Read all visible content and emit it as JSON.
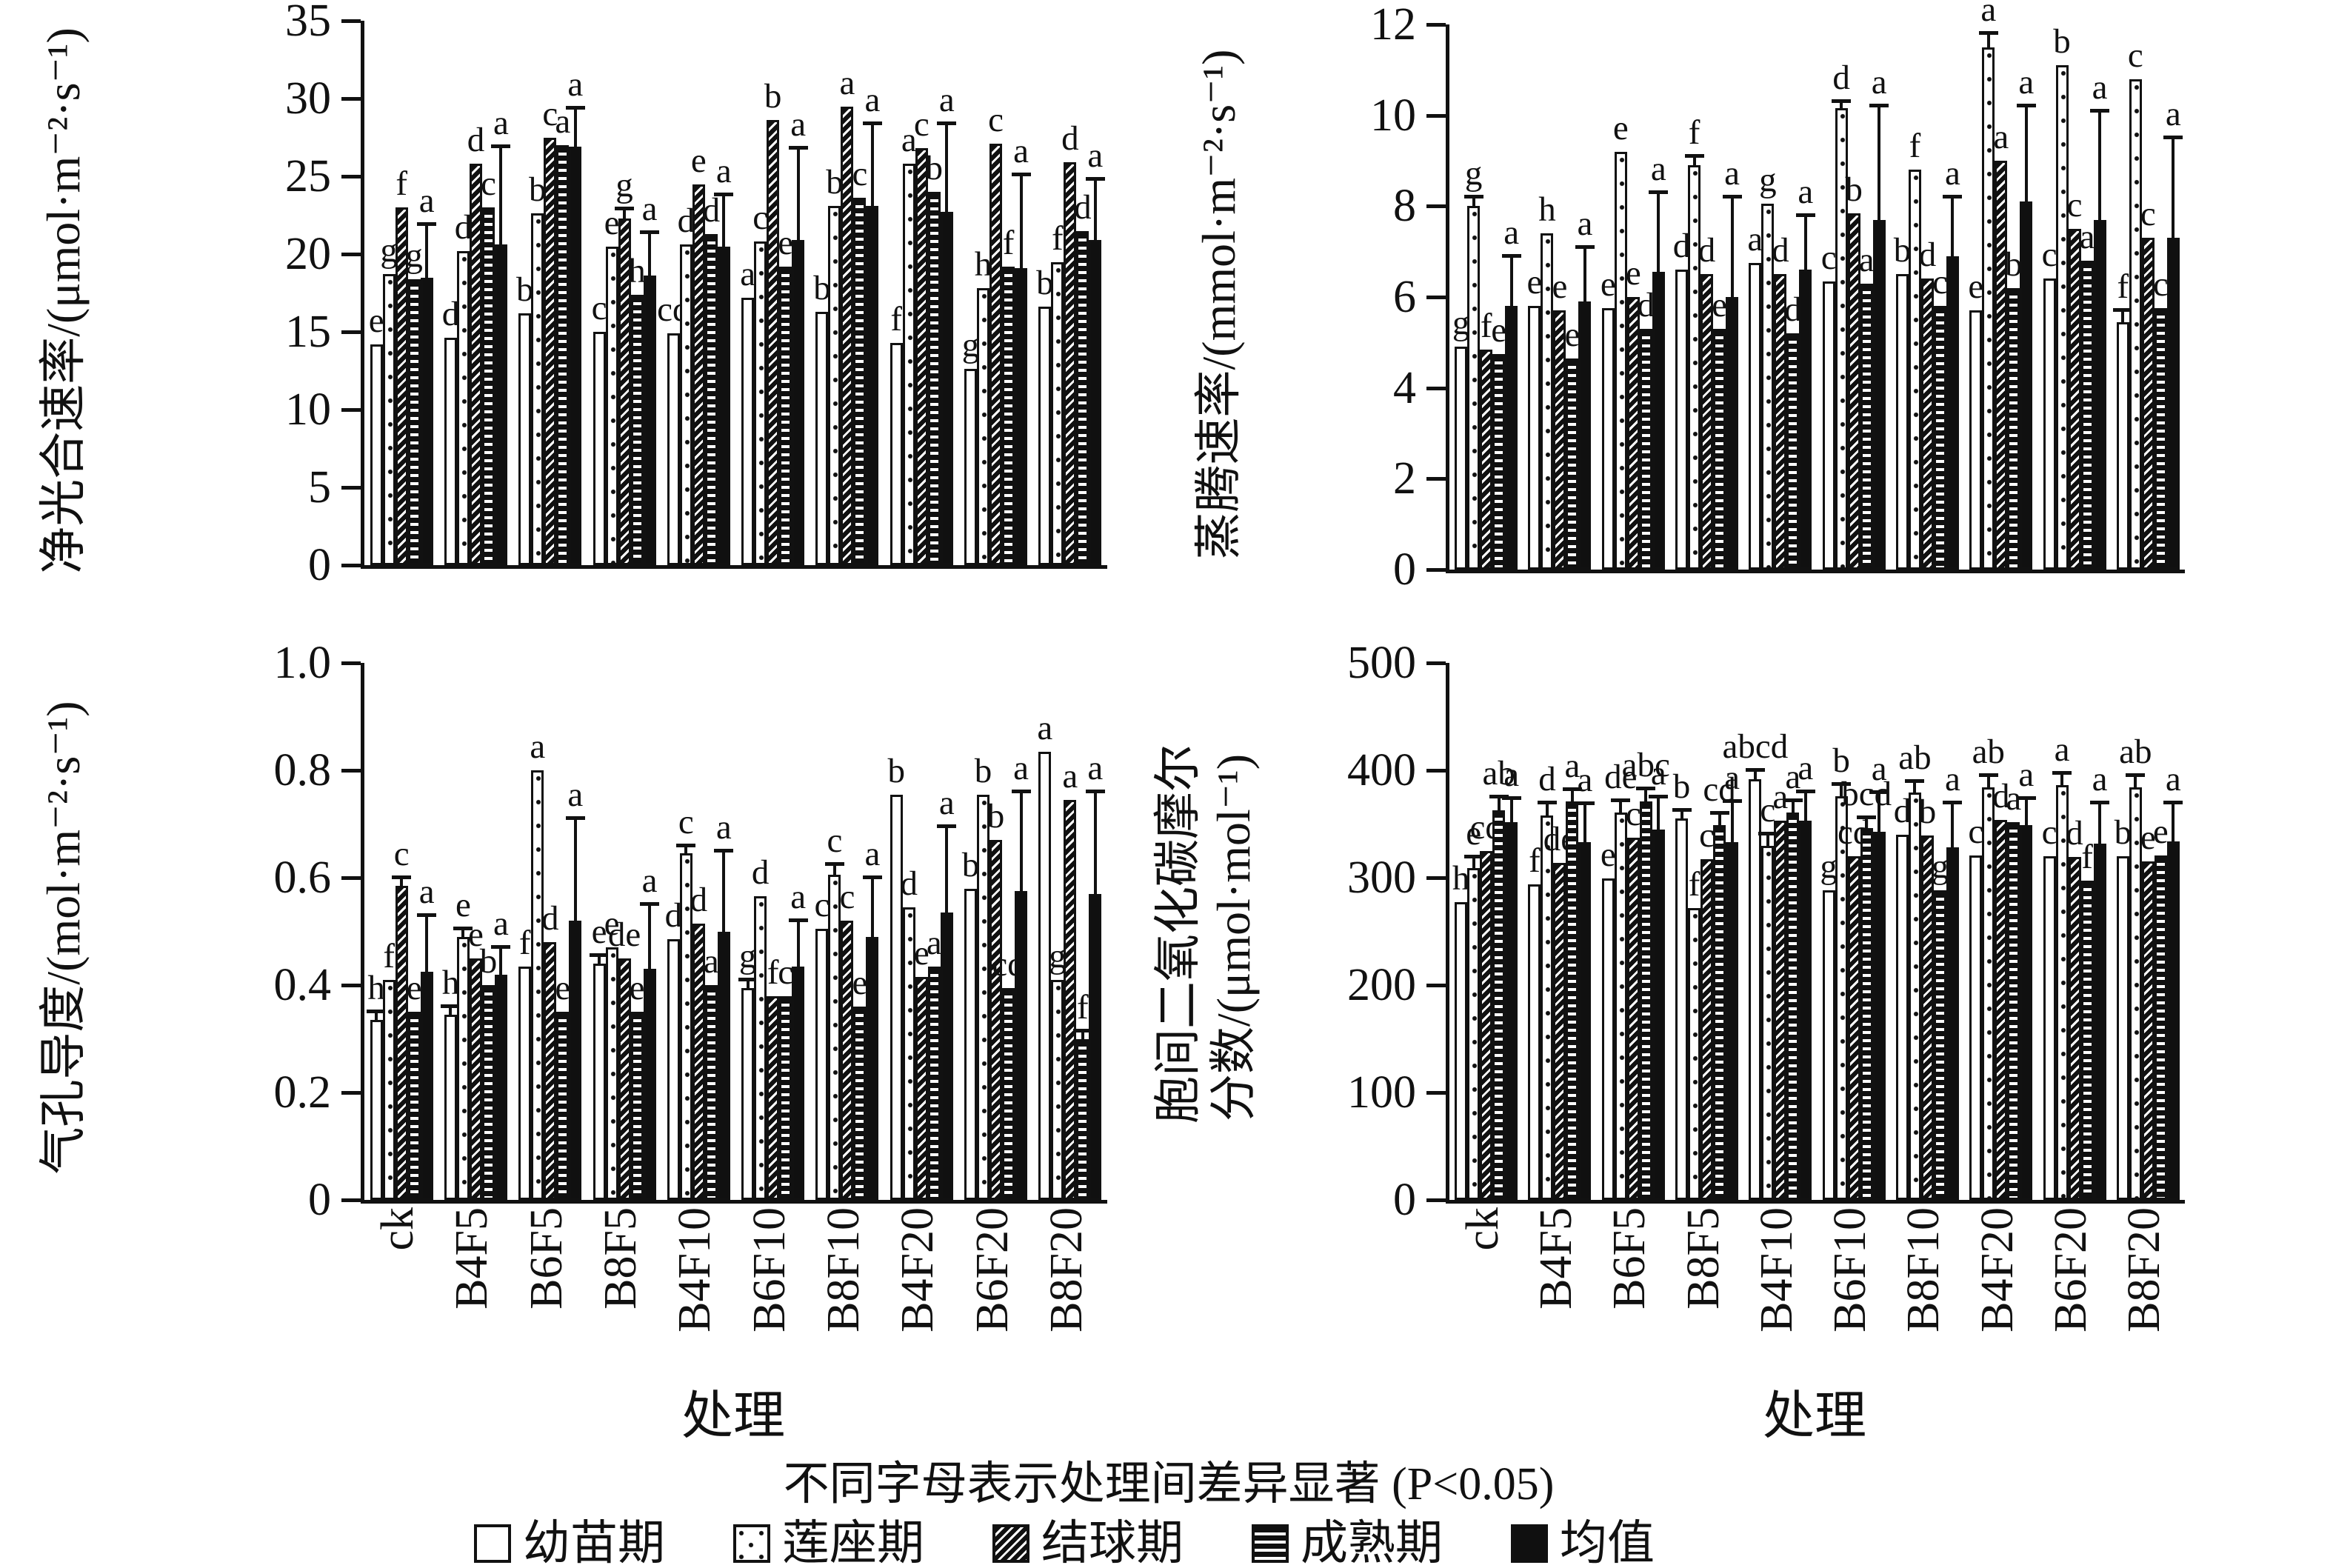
{
  "caption": "不同字母表示处理间差异显著 (P<0.05)",
  "x_axis_title": "处理",
  "treatments": [
    "ck",
    "B4F5",
    "B6F5",
    "B8F5",
    "B4F10",
    "B6F10",
    "B8F10",
    "B4F20",
    "B6F20",
    "B8F20"
  ],
  "series_names": [
    "幼苗期",
    "莲座期",
    "结球期",
    "成熟期",
    "均值"
  ],
  "legend": [
    {
      "label": "幼苗期",
      "pattern": "white"
    },
    {
      "label": "莲座期",
      "pattern": "dotted"
    },
    {
      "label": "结球期",
      "pattern": "diagonal-hatch"
    },
    {
      "label": "成熟期",
      "pattern": "horizontal-lines"
    },
    {
      "label": "均值",
      "pattern": "solid-black"
    }
  ],
  "chart_data": [
    {
      "type": "bar",
      "position": "top-left",
      "ylabel": "净光合速率/(μmol·m⁻²·s⁻¹)",
      "ylabel_lines": [
        "净光合速率/(μmol·m⁻²·s⁻¹)"
      ],
      "ylim": [
        0,
        35
      ],
      "yticks": [
        0,
        5,
        10,
        15,
        20,
        25,
        30,
        35
      ],
      "tick_decimals": 0,
      "categories": [
        "ck",
        "B4F5",
        "B6F5",
        "B8F5",
        "B4F10",
        "B6F10",
        "B8F10",
        "B4F20",
        "B6F20",
        "B8F20"
      ],
      "series": [
        "幼苗期",
        "莲座期",
        "结球期",
        "成熟期",
        "均值"
      ],
      "groups": [
        {
          "treatment": "ck",
          "values": [
            14.2,
            18.7,
            23.0,
            18.4,
            18.5
          ],
          "letters": [
            "e",
            "g",
            "f",
            "g",
            "a"
          ],
          "errs": [
            null,
            null,
            null,
            null,
            21.9
          ]
        },
        {
          "treatment": "B4F5",
          "values": [
            14.6,
            20.2,
            25.8,
            23.0,
            20.6
          ],
          "letters": [
            "d",
            "d",
            "d",
            "c",
            "a"
          ],
          "errs": [
            null,
            null,
            null,
            null,
            26.9
          ]
        },
        {
          "treatment": "B6F5",
          "values": [
            16.2,
            22.6,
            27.5,
            27.0,
            26.9
          ],
          "letters": [
            "b",
            "b",
            "c",
            "a",
            "a"
          ],
          "errs": [
            null,
            null,
            null,
            null,
            29.4
          ]
        },
        {
          "treatment": "B8F5",
          "values": [
            15.0,
            20.5,
            22.3,
            17.4,
            18.6
          ],
          "letters": [
            "c",
            "e",
            "g",
            "h",
            "a"
          ],
          "errs": [
            null,
            null,
            22.9,
            null,
            21.4
          ]
        },
        {
          "treatment": "B4F10",
          "values": [
            14.9,
            20.6,
            24.5,
            21.3,
            20.5
          ],
          "letters": [
            "cd",
            "d",
            "e",
            "d",
            "a"
          ],
          "errs": [
            null,
            null,
            null,
            null,
            23.8
          ]
        },
        {
          "treatment": "B6F10",
          "values": [
            17.2,
            20.8,
            28.6,
            19.2,
            20.9
          ],
          "letters": [
            "a",
            "c",
            "b",
            "e",
            "a"
          ],
          "errs": [
            null,
            null,
            null,
            null,
            26.8
          ]
        },
        {
          "treatment": "B8F10",
          "values": [
            16.3,
            23.1,
            29.5,
            23.6,
            23.1
          ],
          "letters": [
            "b",
            "b",
            "a",
            "c",
            "a"
          ],
          "errs": [
            null,
            null,
            null,
            null,
            28.4
          ]
        },
        {
          "treatment": "B4F20",
          "values": [
            14.3,
            25.8,
            26.8,
            24.0,
            22.7
          ],
          "letters": [
            "f",
            "a",
            "c",
            "b",
            "a"
          ],
          "errs": [
            null,
            null,
            null,
            null,
            28.4
          ]
        },
        {
          "treatment": "B6F20",
          "values": [
            12.6,
            17.8,
            27.1,
            19.2,
            19.1
          ],
          "letters": [
            "g",
            "h",
            "c",
            "f",
            "a"
          ],
          "errs": [
            null,
            null,
            null,
            null,
            25.1
          ]
        },
        {
          "treatment": "B8F20",
          "values": [
            16.6,
            19.5,
            25.9,
            21.5,
            20.9
          ],
          "letters": [
            "b",
            "f",
            "d",
            "d",
            "a"
          ],
          "errs": [
            null,
            null,
            null,
            null,
            24.8
          ]
        }
      ]
    },
    {
      "type": "bar",
      "position": "top-right",
      "ylabel": "蒸腾速率/(mmol·m⁻²·s⁻¹)",
      "ylabel_lines": [
        "蒸腾速率/(mmol·m⁻²·s⁻¹)"
      ],
      "ylim": [
        0,
        12
      ],
      "yticks": [
        0,
        2,
        4,
        6,
        8,
        10,
        12
      ],
      "tick_decimals": 0,
      "categories": [
        "ck",
        "B4F5",
        "B6F5",
        "B8F5",
        "B4F10",
        "B6F10",
        "B8F10",
        "B4F20",
        "B6F20",
        "B8F20"
      ],
      "series": [
        "幼苗期",
        "莲座期",
        "结球期",
        "成熟期",
        "均值"
      ],
      "groups": [
        {
          "treatment": "ck",
          "values": [
            4.9,
            8.0,
            4.85,
            4.75,
            5.8
          ],
          "letters": [
            "g",
            "g",
            "f",
            "e",
            "a"
          ],
          "errs": [
            null,
            8.2,
            null,
            null,
            6.9
          ]
        },
        {
          "treatment": "B4F5",
          "values": [
            5.8,
            7.4,
            5.7,
            4.65,
            5.9
          ],
          "letters": [
            "e",
            "h",
            "e",
            "e",
            "a"
          ],
          "errs": [
            null,
            null,
            null,
            null,
            7.1
          ]
        },
        {
          "treatment": "B6F5",
          "values": [
            5.75,
            9.2,
            6.0,
            5.3,
            6.55
          ],
          "letters": [
            "e",
            "e",
            "e",
            "d",
            "a"
          ],
          "errs": [
            null,
            null,
            null,
            null,
            8.3
          ]
        },
        {
          "treatment": "B8F5",
          "values": [
            6.6,
            8.9,
            6.5,
            5.3,
            6.0
          ],
          "letters": [
            "d",
            "f",
            "d",
            "e",
            "a"
          ],
          "errs": [
            null,
            9.1,
            null,
            null,
            8.2
          ]
        },
        {
          "treatment": "B4F10",
          "values": [
            6.75,
            8.05,
            6.5,
            5.2,
            6.6
          ],
          "letters": [
            "a",
            "g",
            "d",
            "d",
            "a"
          ],
          "errs": [
            null,
            null,
            null,
            null,
            7.8
          ]
        },
        {
          "treatment": "B6F10",
          "values": [
            6.35,
            10.15,
            7.85,
            6.3,
            7.7
          ],
          "letters": [
            "c",
            "d",
            "b",
            "a",
            "a"
          ],
          "errs": [
            null,
            10.3,
            null,
            null,
            10.2
          ]
        },
        {
          "treatment": "B8F10",
          "values": [
            6.5,
            8.8,
            6.4,
            5.8,
            6.9
          ],
          "letters": [
            "b",
            "f",
            "d",
            "c",
            "a"
          ],
          "errs": [
            null,
            null,
            null,
            null,
            8.2
          ]
        },
        {
          "treatment": "B4F20",
          "values": [
            5.7,
            11.5,
            9.0,
            6.2,
            8.1
          ],
          "letters": [
            "e",
            "a",
            "a",
            "b",
            "a"
          ],
          "errs": [
            null,
            11.8,
            null,
            null,
            10.2
          ]
        },
        {
          "treatment": "B6F20",
          "values": [
            6.4,
            11.1,
            7.5,
            6.8,
            7.7
          ],
          "letters": [
            "c",
            "b",
            "c",
            "a",
            "a"
          ],
          "errs": [
            null,
            null,
            null,
            null,
            10.1
          ]
        },
        {
          "treatment": "B8F20",
          "values": [
            5.45,
            10.8,
            7.3,
            5.75,
            7.3
          ],
          "letters": [
            "f",
            "c",
            "c",
            "c",
            "a"
          ],
          "errs": [
            5.7,
            null,
            null,
            null,
            9.5
          ]
        }
      ]
    },
    {
      "type": "bar",
      "position": "bottom-left",
      "ylabel": "气孔导度/(mol·m⁻²·s⁻¹)",
      "ylabel_lines": [
        "气孔导度/(mol·m⁻²·s⁻¹)"
      ],
      "ylim": [
        0,
        1.0
      ],
      "yticks": [
        0,
        0.2,
        0.4,
        0.6,
        0.8,
        1.0
      ],
      "tick_decimals": 1,
      "categories": [
        "ck",
        "B4F5",
        "B6F5",
        "B8F5",
        "B4F10",
        "B6F10",
        "B8F10",
        "B4F20",
        "B6F20",
        "B8F20"
      ],
      "series": [
        "幼苗期",
        "莲座期",
        "结球期",
        "成熟期",
        "均值"
      ],
      "groups": [
        {
          "treatment": "ck",
          "values": [
            0.335,
            0.41,
            0.585,
            0.35,
            0.425
          ],
          "letters": [
            "h",
            "f",
            "c",
            "e",
            "a"
          ],
          "errs": [
            0.35,
            null,
            0.6,
            null,
            0.53
          ]
        },
        {
          "treatment": "B4F5",
          "values": [
            0.345,
            0.49,
            0.45,
            0.4,
            0.42
          ],
          "letters": [
            "h",
            "e",
            "e",
            "b",
            "a"
          ],
          "errs": [
            0.36,
            0.505,
            null,
            null,
            0.47
          ]
        },
        {
          "treatment": "B6F5",
          "values": [
            0.435,
            0.8,
            0.48,
            0.35,
            0.52
          ],
          "letters": [
            "f",
            "a",
            "d",
            "e",
            "a"
          ],
          "errs": [
            null,
            null,
            null,
            null,
            0.71
          ]
        },
        {
          "treatment": "B8F5",
          "values": [
            0.44,
            0.47,
            0.45,
            0.35,
            0.43
          ],
          "letters": [
            "e",
            "e",
            "de",
            "e",
            "a"
          ],
          "errs": [
            0.455,
            null,
            null,
            null,
            0.55
          ]
        },
        {
          "treatment": "B4F10",
          "values": [
            0.486,
            0.645,
            0.515,
            0.4,
            0.5
          ],
          "letters": [
            "d",
            "c",
            "d",
            "a",
            "a"
          ],
          "errs": [
            null,
            0.66,
            null,
            null,
            0.65
          ]
        },
        {
          "treatment": "B6F10",
          "values": [
            0.395,
            0.565,
            0.38,
            0.38,
            0.435
          ],
          "letters": [
            "g",
            "d",
            "f",
            "c",
            "a"
          ],
          "errs": [
            0.41,
            null,
            null,
            null,
            0.52
          ]
        },
        {
          "treatment": "B8F10",
          "values": [
            0.505,
            0.605,
            0.52,
            0.36,
            0.49
          ],
          "letters": [
            "c",
            "c",
            "c",
            "e",
            "a"
          ],
          "errs": [
            null,
            0.625,
            null,
            null,
            0.6
          ]
        },
        {
          "treatment": "B4F20",
          "values": [
            0.755,
            0.545,
            0.415,
            0.435,
            0.535
          ],
          "letters": [
            "b",
            "d",
            "e",
            "a",
            "a"
          ],
          "errs": [
            null,
            null,
            null,
            null,
            0.695
          ]
        },
        {
          "treatment": "B6F20",
          "values": [
            0.58,
            0.755,
            0.67,
            0.395,
            0.575
          ],
          "letters": [
            "b",
            "b",
            "b",
            "cd",
            "a"
          ],
          "errs": [
            null,
            null,
            null,
            null,
            0.76
          ]
        },
        {
          "treatment": "B8F20",
          "values": [
            0.835,
            0.41,
            0.745,
            0.3,
            0.57
          ],
          "letters": [
            "a",
            "g",
            "a",
            "f",
            "a"
          ],
          "errs": [
            null,
            null,
            null,
            0.315,
            0.76
          ]
        }
      ]
    },
    {
      "type": "bar",
      "position": "bottom-right",
      "ylabel": "胞间二氧化碳摩尔分数/(μmol·mol⁻¹)",
      "ylabel_lines": [
        "胞间二氧化碳摩尔",
        "分数/(μmol·mol⁻¹)"
      ],
      "ylim": [
        0,
        500
      ],
      "yticks": [
        0,
        100,
        200,
        300,
        400,
        500
      ],
      "tick_decimals": 0,
      "categories": [
        "ck",
        "B4F5",
        "B6F5",
        "B8F5",
        "B4F10",
        "B6F10",
        "B8F10",
        "B4F20",
        "B6F20",
        "B8F20"
      ],
      "series": [
        "幼苗期",
        "莲座期",
        "结球期",
        "成熟期",
        "均值"
      ],
      "groups": [
        {
          "treatment": "ck",
          "values": [
            277,
            309,
            325,
            363,
            352
          ],
          "letters": [
            "h",
            "e",
            "cd",
            "ab",
            "a"
          ],
          "errs": [
            null,
            319,
            null,
            375,
            374
          ]
        },
        {
          "treatment": "B4F5",
          "values": [
            294,
            358,
            314,
            371,
            333
          ],
          "letters": [
            "f",
            "d",
            "de",
            "a",
            "a"
          ],
          "errs": [
            null,
            370,
            null,
            382,
            369
          ]
        },
        {
          "treatment": "B6F5",
          "values": [
            299,
            361,
            337,
            371,
            345
          ],
          "letters": [
            "e",
            "de",
            "c",
            "abc",
            "a"
          ],
          "errs": [
            null,
            372,
            null,
            383,
            375
          ]
        },
        {
          "treatment": "B8F5",
          "values": [
            355,
            272,
            317,
            349,
            333
          ],
          "letters": [
            "b",
            "f",
            "c",
            "cd",
            "a"
          ],
          "errs": [
            363,
            null,
            null,
            360,
            371
          ]
        },
        {
          "treatment": "B4F10",
          "values": [
            392,
            330,
            353,
            361,
            353
          ],
          "letters": [
            "abcd",
            "c",
            "a",
            "a",
            "a"
          ],
          "errs": [
            400,
            341,
            null,
            372,
            380
          ]
        },
        {
          "treatment": "B6F10",
          "values": [
            288,
            376,
            320,
            346,
            343
          ],
          "letters": [
            "g",
            "b",
            "cd",
            "bcd",
            "a"
          ],
          "errs": [
            null,
            387,
            null,
            356,
            379
          ]
        },
        {
          "treatment": "B8F10",
          "values": [
            340,
            379,
            339,
            288,
            328
          ],
          "letters": [
            "d",
            "ab",
            "b",
            "g",
            "a"
          ],
          "errs": [
            null,
            390,
            null,
            null,
            370
          ]
        },
        {
          "treatment": "B4F20",
          "values": [
            321,
            384,
            354,
            352,
            349
          ],
          "letters": [
            "c",
            "ab",
            "d",
            "a",
            "a"
          ],
          "errs": [
            null,
            395,
            null,
            null,
            374
          ]
        },
        {
          "treatment": "B6F20",
          "values": [
            320,
            386,
            319,
            297,
            332
          ],
          "letters": [
            "c",
            "a",
            "d",
            "f",
            "a"
          ],
          "errs": [
            null,
            397,
            null,
            null,
            370
          ]
        },
        {
          "treatment": "B8F20",
          "values": [
            320,
            384,
            315,
            321,
            334
          ],
          "letters": [
            "b",
            "ab",
            "e",
            "e",
            "a"
          ],
          "errs": [
            null,
            395,
            null,
            null,
            370
          ]
        }
      ]
    }
  ]
}
